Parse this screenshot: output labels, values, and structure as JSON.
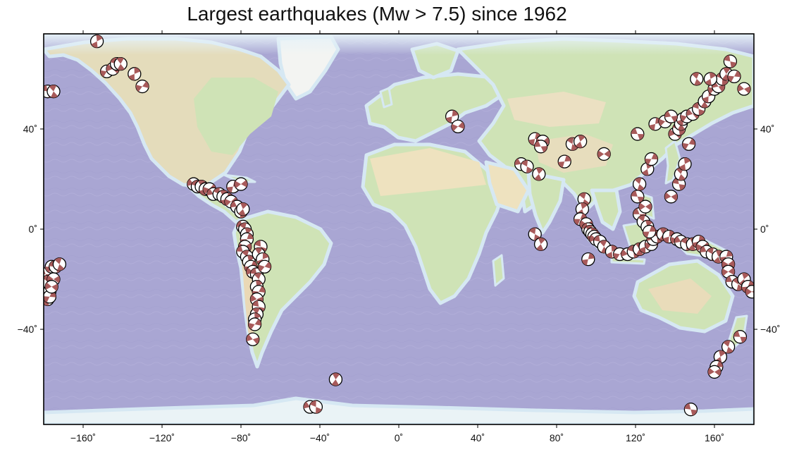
{
  "title": "Largest earthquakes (Mw > 7.5) since 1962",
  "map": {
    "projection": "equirectangular",
    "lon_range": [
      -180,
      180
    ],
    "lat_range": [
      -78,
      78
    ],
    "ocean_color": "#a9a6d3",
    "land_lowland_color": "#cfe3b6",
    "land_highland_color": "#e7ddbd",
    "shelf_color": "#d6e8f3",
    "beachball_fill": "#a85a5a",
    "beachball_outline": "#000000"
  },
  "axes": {
    "x_ticks": [
      {
        "value": -160,
        "label": "−160˚"
      },
      {
        "value": -120,
        "label": "−120˚"
      },
      {
        "value": -80,
        "label": "−80˚"
      },
      {
        "value": -40,
        "label": "−40˚"
      },
      {
        "value": 0,
        "label": "0˚"
      },
      {
        "value": 40,
        "label": "40˚"
      },
      {
        "value": 80,
        "label": "80˚"
      },
      {
        "value": 120,
        "label": "120˚"
      },
      {
        "value": 160,
        "label": "160˚"
      }
    ],
    "y_ticks": [
      {
        "value": 40,
        "label": "40˚"
      },
      {
        "value": 0,
        "label": "0˚"
      },
      {
        "value": -40,
        "label": "−40˚"
      }
    ]
  },
  "earthquakes": [
    [
      -179,
      -18
    ],
    [
      -178,
      -21
    ],
    [
      -177,
      -25
    ],
    [
      -176,
      -15
    ],
    [
      -175,
      -20
    ],
    [
      -174,
      -15
    ],
    [
      -172,
      -14
    ],
    [
      -178,
      -28
    ],
    [
      -177,
      -27
    ],
    [
      -176,
      -23
    ],
    [
      -178,
      55
    ],
    [
      -175,
      55
    ],
    [
      -153,
      75
    ],
    [
      -148,
      63
    ],
    [
      -145,
      64
    ],
    [
      -143,
      66
    ],
    [
      -141,
      66
    ],
    [
      -134,
      62
    ],
    [
      -130,
      57
    ],
    [
      -104,
      18
    ],
    [
      -102,
      17
    ],
    [
      -100,
      17
    ],
    [
      -98,
      16
    ],
    [
      -96,
      16
    ],
    [
      -94,
      14
    ],
    [
      -91,
      14
    ],
    [
      -89,
      13
    ],
    [
      -87,
      12
    ],
    [
      -85,
      11
    ],
    [
      -82,
      9
    ],
    [
      -80,
      7
    ],
    [
      -79,
      8
    ],
    [
      -84,
      17
    ],
    [
      -80,
      18
    ],
    [
      -79,
      1
    ],
    [
      -78,
      0
    ],
    [
      -77,
      -2
    ],
    [
      -77,
      -4
    ],
    [
      -78,
      -7
    ],
    [
      -79,
      -9
    ],
    [
      -77,
      -11
    ],
    [
      -76,
      -13
    ],
    [
      -75,
      -15
    ],
    [
      -74,
      -17
    ],
    [
      -72,
      -18
    ],
    [
      -71,
      -20
    ],
    [
      -72,
      -23
    ],
    [
      -71,
      -25
    ],
    [
      -72,
      -28
    ],
    [
      -71,
      -31
    ],
    [
      -72,
      -34
    ],
    [
      -73,
      -36
    ],
    [
      -73,
      -38
    ],
    [
      -74,
      -44
    ],
    [
      -70,
      -7
    ],
    [
      -71,
      -10
    ],
    [
      -69,
      -12
    ],
    [
      -68,
      -15
    ],
    [
      -45,
      -71
    ],
    [
      -42,
      -71
    ],
    [
      -32,
      -60
    ],
    [
      27,
      45
    ],
    [
      30,
      41
    ],
    [
      62,
      26
    ],
    [
      65,
      25
    ],
    [
      71,
      22
    ],
    [
      69,
      36
    ],
    [
      73,
      35
    ],
    [
      72,
      33
    ],
    [
      88,
      34
    ],
    [
      92,
      35
    ],
    [
      84,
      27
    ],
    [
      104,
      30
    ],
    [
      121,
      38
    ],
    [
      94,
      12
    ],
    [
      93,
      8
    ],
    [
      92,
      4
    ],
    [
      95,
      2
    ],
    [
      96,
      0
    ],
    [
      97,
      -1
    ],
    [
      98,
      -2
    ],
    [
      99,
      -3
    ],
    [
      100,
      -4
    ],
    [
      102,
      -5
    ],
    [
      104,
      -7
    ],
    [
      108,
      -9
    ],
    [
      112,
      -10
    ],
    [
      116,
      -10
    ],
    [
      119,
      -9
    ],
    [
      122,
      -8
    ],
    [
      125,
      -7
    ],
    [
      128,
      -6
    ],
    [
      129,
      -4
    ],
    [
      131,
      -3
    ],
    [
      134,
      -2
    ],
    [
      137,
      -3
    ],
    [
      141,
      -4
    ],
    [
      143,
      -5
    ],
    [
      146,
      -6
    ],
    [
      149,
      -6
    ],
    [
      152,
      -5
    ],
    [
      154,
      -7
    ],
    [
      156,
      -9
    ],
    [
      159,
      -10
    ],
    [
      162,
      -11
    ],
    [
      166,
      -11
    ],
    [
      167,
      -14
    ],
    [
      122,
      6
    ],
    [
      124,
      3
    ],
    [
      126,
      1
    ],
    [
      127,
      -1
    ],
    [
      125,
      9
    ],
    [
      121,
      13
    ],
    [
      122,
      18
    ],
    [
      126,
      24
    ],
    [
      128,
      28
    ],
    [
      138,
      13
    ],
    [
      142,
      18
    ],
    [
      143,
      22
    ],
    [
      145,
      26
    ],
    [
      147,
      34
    ],
    [
      140,
      38
    ],
    [
      142,
      40
    ],
    [
      143,
      42
    ],
    [
      144,
      44
    ],
    [
      146,
      45
    ],
    [
      149,
      46
    ],
    [
      152,
      48
    ],
    [
      155,
      51
    ],
    [
      157,
      53
    ],
    [
      160,
      56
    ],
    [
      162,
      57
    ],
    [
      164,
      60
    ],
    [
      166,
      62
    ],
    [
      130,
      42
    ],
    [
      135,
      43
    ],
    [
      138,
      45
    ],
    [
      69,
      -2
    ],
    [
      72,
      -6
    ],
    [
      96,
      -12
    ],
    [
      167,
      -17
    ],
    [
      169,
      -21
    ],
    [
      172,
      -22
    ],
    [
      175,
      -20
    ],
    [
      177,
      -23
    ],
    [
      179,
      -25
    ],
    [
      173,
      -43
    ],
    [
      167,
      -47
    ],
    [
      163,
      -51
    ],
    [
      161,
      -55
    ],
    [
      160,
      -57
    ],
    [
      148,
      -72
    ],
    [
      151,
      60
    ],
    [
      158,
      60
    ],
    [
      170,
      61
    ],
    [
      175,
      56
    ],
    [
      168,
      67
    ]
  ]
}
